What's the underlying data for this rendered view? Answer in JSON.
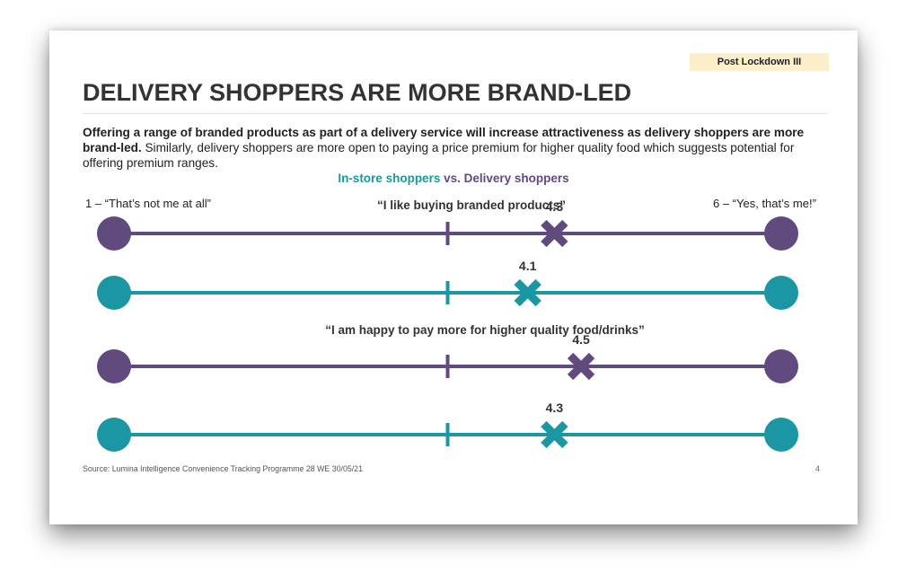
{
  "slide": {
    "tag": "Post Lockdown III",
    "title": "DELIVERY SHOPPERS ARE MORE BRAND-LED",
    "intro_bold": "Offering a range of branded products as part of a delivery service will increase attractiveness as delivery shoppers are more brand-led.",
    "intro_rest": " Similarly, delivery shoppers are more open to paying a price premium for higher quality food which suggests potential for offering premium ranges.",
    "subtitle_instore": "In-store shoppers",
    "subtitle_vs": " vs. ",
    "subtitle_delivery": "Delivery shoppers",
    "scale_min_label": "1 – “That’s not me at all”",
    "scale_max_label": "6 – “Yes, that’s me!”",
    "source": "Source: Lumina Intelligence Convenience Tracking Programme 28 WE 30/05/21",
    "page_number": "4"
  },
  "colors": {
    "delivery": "#614a7e",
    "instore": "#1a97a2"
  },
  "chart_data": {
    "type": "scatter",
    "scale_min": 1,
    "scale_max": 6,
    "midpoint": 3.5,
    "statements": [
      {
        "text": "“I like buying branded products”",
        "series": [
          {
            "name": "Delivery shoppers",
            "value": 4.3,
            "label": "4.3"
          },
          {
            "name": "In-store shoppers",
            "value": 4.1,
            "label": "4.1"
          }
        ]
      },
      {
        "text": "“I am happy to pay more for higher quality food/drinks”",
        "series": [
          {
            "name": "Delivery shoppers",
            "value": 4.5,
            "label": "4.5"
          },
          {
            "name": "In-store shoppers",
            "value": 4.3,
            "label": "4.3"
          }
        ]
      }
    ]
  }
}
